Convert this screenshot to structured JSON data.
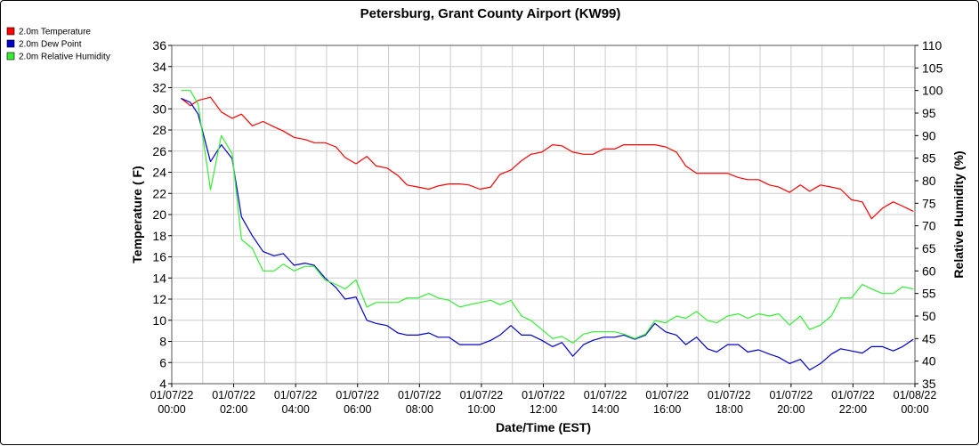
{
  "chart_data": {
    "type": "line",
    "title": "Petersburg, Grant County Airport (KW99)",
    "xlabel": "Date/Time (EST)",
    "ylabel": "Temperature ( F)",
    "y2label": "Relative Humidity (%)",
    "ylim": [
      4,
      36
    ],
    "y_ticks": [
      4,
      6,
      8,
      10,
      12,
      14,
      16,
      18,
      20,
      22,
      24,
      26,
      28,
      30,
      32,
      34,
      36
    ],
    "y2lim": [
      35,
      110
    ],
    "y2_ticks": [
      35,
      40,
      45,
      50,
      55,
      60,
      65,
      70,
      75,
      80,
      85,
      90,
      95,
      100,
      105,
      110
    ],
    "xlim": [
      0,
      24
    ],
    "x_ticks": [
      {
        "date": "01/07/22",
        "time": "00:00"
      },
      {
        "date": "01/07/22",
        "time": "02:00"
      },
      {
        "date": "01/07/22",
        "time": "04:00"
      },
      {
        "date": "01/07/22",
        "time": "06:00"
      },
      {
        "date": "01/07/22",
        "time": "08:00"
      },
      {
        "date": "01/07/22",
        "time": "10:00"
      },
      {
        "date": "01/07/22",
        "time": "12:00"
      },
      {
        "date": "01/07/22",
        "time": "14:00"
      },
      {
        "date": "01/07/22",
        "time": "16:00"
      },
      {
        "date": "01/07/22",
        "time": "18:00"
      },
      {
        "date": "01/07/22",
        "time": "20:00"
      },
      {
        "date": "01/07/22",
        "time": "22:00"
      },
      {
        "date": "01/08/22",
        "time": "00:00"
      }
    ],
    "grid": true,
    "legend_position": "top-left",
    "x_hours": [
      0.3,
      0.6,
      0.85,
      1.25,
      1.6,
      1.95,
      2.25,
      2.6,
      2.95,
      3.3,
      3.6,
      3.95,
      4.3,
      4.6,
      4.95,
      5.3,
      5.6,
      5.95,
      6.3,
      6.6,
      6.95,
      7.3,
      7.6,
      7.95,
      8.3,
      8.6,
      8.95,
      9.3,
      9.6,
      9.95,
      10.3,
      10.6,
      10.95,
      11.3,
      11.6,
      11.95,
      12.3,
      12.6,
      12.95,
      13.3,
      13.6,
      13.95,
      14.3,
      14.6,
      14.95,
      15.3,
      15.6,
      15.95,
      16.3,
      16.6,
      16.95,
      17.3,
      17.6,
      17.95,
      18.3,
      18.6,
      18.95,
      19.3,
      19.6,
      19.95,
      20.3,
      20.6,
      20.95,
      21.3,
      21.6,
      21.95,
      22.3,
      22.6,
      22.95,
      23.3,
      23.6,
      23.95
    ],
    "series": [
      {
        "name": "2.0m Temperature",
        "axis": "left",
        "color": "#ff0000",
        "values": [
          31.0,
          30.3,
          30.8,
          31.1,
          29.7,
          29.1,
          29.5,
          28.4,
          28.8,
          28.3,
          27.9,
          27.3,
          27.1,
          26.8,
          26.8,
          26.4,
          25.4,
          24.8,
          25.5,
          24.6,
          24.4,
          23.7,
          22.8,
          22.6,
          22.4,
          22.7,
          22.9,
          22.9,
          22.8,
          22.4,
          22.6,
          23.8,
          24.2,
          25.1,
          25.7,
          25.9,
          26.6,
          26.5,
          25.9,
          25.7,
          25.7,
          26.2,
          26.2,
          26.6,
          26.6,
          26.6,
          26.6,
          26.4,
          25.9,
          24.6,
          23.9,
          23.9,
          23.9,
          23.9,
          23.5,
          23.3,
          23.3,
          22.8,
          22.6,
          22.1,
          22.8,
          22.2,
          22.8,
          22.6,
          22.4,
          21.4,
          21.2,
          19.6,
          20.6,
          21.2,
          20.8,
          20.3
        ]
      },
      {
        "name": "2.0m Dew Point",
        "axis": "left",
        "color": "#0000cc",
        "values": [
          31.0,
          30.6,
          29.5,
          25.0,
          26.6,
          25.3,
          19.8,
          18.0,
          16.5,
          16.1,
          16.3,
          15.2,
          15.4,
          15.2,
          14.0,
          13.1,
          12.0,
          12.2,
          10.0,
          9.7,
          9.5,
          8.8,
          8.6,
          8.6,
          8.8,
          8.4,
          8.4,
          7.7,
          7.7,
          7.7,
          8.1,
          8.6,
          9.5,
          8.6,
          8.6,
          8.1,
          7.5,
          7.9,
          6.6,
          7.7,
          8.1,
          8.4,
          8.4,
          8.6,
          8.2,
          8.6,
          9.7,
          8.9,
          8.6,
          7.7,
          8.4,
          7.3,
          7.0,
          7.7,
          7.7,
          7.0,
          7.2,
          6.8,
          6.5,
          5.9,
          6.3,
          5.3,
          5.9,
          6.8,
          7.3,
          7.1,
          6.9,
          7.5,
          7.5,
          7.1,
          7.5,
          8.2
        ]
      },
      {
        "name": "2.0m Relative Humidity",
        "axis": "right",
        "color": "#33ee33",
        "values": [
          100,
          100,
          97,
          78,
          90,
          86,
          67,
          65,
          60,
          60,
          61.5,
          60,
          61,
          61,
          58,
          57,
          56,
          58,
          52,
          53,
          53,
          53,
          54,
          54,
          55,
          54,
          53.5,
          52,
          52.5,
          53,
          53.5,
          52.5,
          53.5,
          50,
          49,
          47,
          45,
          45.5,
          44,
          46,
          46.5,
          46.5,
          46.5,
          46,
          45,
          46,
          49,
          48.5,
          50,
          49.5,
          51,
          49,
          48.5,
          50,
          50.5,
          49.5,
          50.5,
          50,
          50.5,
          48,
          50,
          47,
          48,
          50,
          54,
          54,
          57,
          56,
          55,
          55,
          56.5,
          56
        ]
      }
    ]
  }
}
